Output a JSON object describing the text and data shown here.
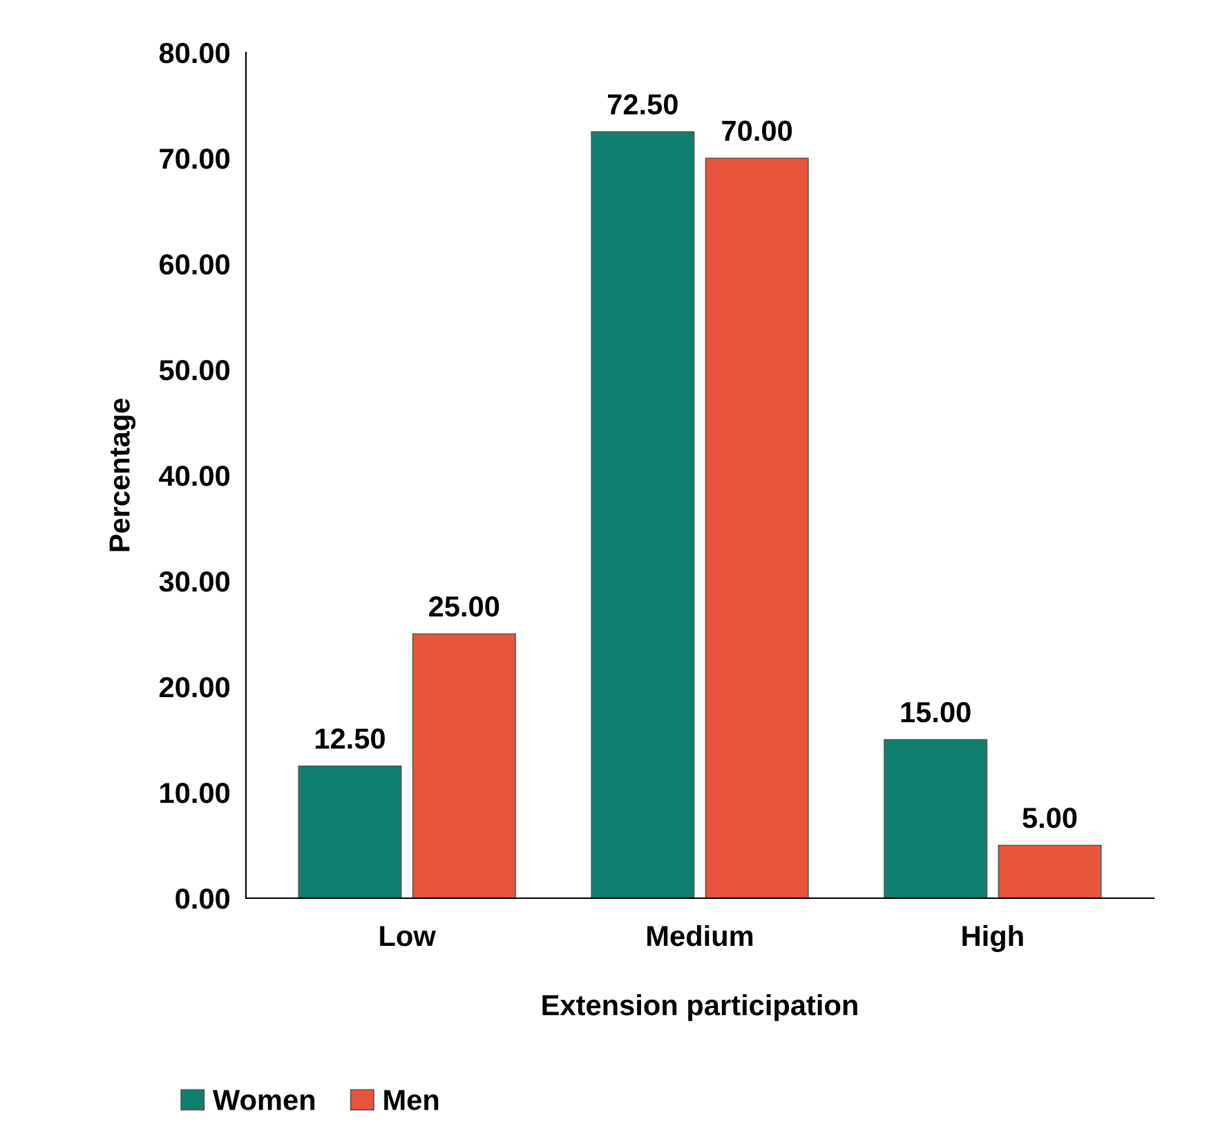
{
  "chart_data": {
    "type": "bar",
    "xlabel": "Extension participation",
    "ylabel": "Percentage",
    "categories": [
      "Low",
      "Medium",
      "High"
    ],
    "series": [
      {
        "name": "Women",
        "color": "#0f7f6f",
        "values": [
          12.5,
          72.5,
          15
        ],
        "value_labels": [
          "12.50",
          "72.50",
          "15.00"
        ]
      },
      {
        "name": "Men",
        "color": "#e8553c",
        "values": [
          25,
          70,
          5
        ],
        "value_labels": [
          "25.00",
          "70.00",
          "5.00"
        ]
      }
    ],
    "ylim": [
      0,
      80
    ],
    "yticks": [
      {
        "value": 0,
        "label": "0.00"
      },
      {
        "value": 10,
        "label": "10.00"
      },
      {
        "value": 20,
        "label": "20.00"
      },
      {
        "value": 30,
        "label": "30.00"
      },
      {
        "value": 40,
        "label": "40.00"
      },
      {
        "value": 50,
        "label": "50.00"
      },
      {
        "value": 60,
        "label": "60.00"
      },
      {
        "value": 70,
        "label": "70.00"
      },
      {
        "value": 80,
        "label": "80.00"
      }
    ],
    "grid": false,
    "legend": "bottom left"
  }
}
